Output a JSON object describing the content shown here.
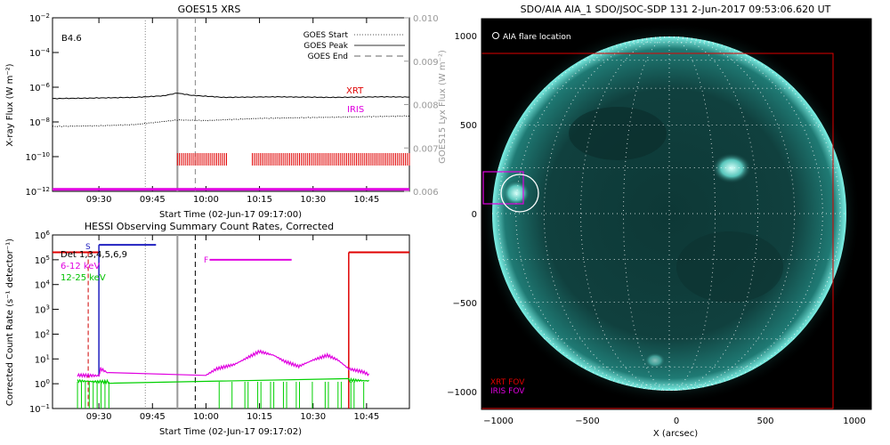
{
  "goes": {
    "title": "GOES15 XRS",
    "class_label": "B4.6",
    "xlabel": "Start Time (02-Jun-17 09:17:00)",
    "ylabel": "X-ray Flux (W m⁻²)",
    "ylabel_right": "GOES15 Lyx Flux (W m⁻²)",
    "legend": {
      "start": "GOES Start",
      "peak": "GOES Peak",
      "end": "GOES End"
    },
    "xrt_label": "XRT",
    "iris_label": "IRIS"
  },
  "hessi": {
    "title": "HESSI Observing Summary Count Rates, Corrected",
    "xlabel": "Start Time (02-Jun-17 09:17:02)",
    "ylabel": "Corrected Count Rate (s⁻¹ detector⁻¹)",
    "legend": {
      "detectors": "Det 1,3,4,5,6,9",
      "low": "6-12 keV",
      "high": "12-25 keV"
    },
    "flag_s": "S",
    "flag_f": "F"
  },
  "aia": {
    "title": "SDO/AIA AIA_1 SDO/JSOC-SDP 131  2-Jun-2017 09:53:06.620 UT",
    "flare_legend": "AIA flare location",
    "xrt_fov": "XRT FOV",
    "iris_fov": "IRIS FOV",
    "xlabel": "X (arcsec)"
  },
  "chart_data": [
    {
      "type": "line",
      "title": "GOES15 XRS",
      "xlabel": "Start Time (02-Jun-17 09:17:00)",
      "ylabel": "X-ray Flux (W m^-2)",
      "ylabel_right": "GOES15 Lyx Flux (W m^-2)",
      "x_ticks": [
        "09:30",
        "09:45",
        "10:00",
        "10:15",
        "10:30",
        "10:45"
      ],
      "x_tick_minutes": [
        570,
        585,
        600,
        615,
        630,
        645
      ],
      "xlim_minutes": [
        557,
        657
      ],
      "y_scale": "log",
      "ylim": [
        1e-12,
        0.01
      ],
      "y_ticks": [
        "10^-12",
        "10^-10",
        "10^-8",
        "10^-6",
        "10^-4",
        "10^-2"
      ],
      "y_right_ticks": [
        "0.006",
        "0.007",
        "0.008",
        "0.009",
        "0.010"
      ],
      "y_right_lim": [
        0.006,
        0.01
      ],
      "series": [
        {
          "color": "#000000",
          "style": "solid",
          "points": [
            [
              557,
              2.2e-07
            ],
            [
              570,
              2.4e-07
            ],
            [
              580,
              2.6e-07
            ],
            [
              588,
              3.2e-07
            ],
            [
              592,
              4.6e-07
            ],
            [
              596,
              3.4e-07
            ],
            [
              605,
              2.6e-07
            ],
            [
              620,
              2.8e-07
            ],
            [
              635,
              2.6e-07
            ],
            [
              650,
              2.8e-07
            ],
            [
              657,
              2.7e-07
            ]
          ]
        },
        {
          "color": "#000000",
          "style": "dotted",
          "points": [
            [
              557,
              5.5e-09
            ],
            [
              570,
              6e-09
            ],
            [
              580,
              7e-09
            ],
            [
              592,
              1.3e-08
            ],
            [
              600,
              1.2e-08
            ],
            [
              615,
              1.6e-08
            ],
            [
              630,
              1.8e-08
            ],
            [
              645,
              2e-08
            ],
            [
              657,
              2.2e-08
            ]
          ]
        }
      ],
      "markers": {
        "goes_start_min": 583,
        "goes_peak_min": 592,
        "goes_end_min": 597
      },
      "xrt_segments_min": [
        [
          592,
          606
        ],
        [
          613,
          657
        ]
      ],
      "iris_level": 1.3e-12
    },
    {
      "type": "line",
      "title": "HESSI Observing Summary Count Rates, Corrected",
      "xlabel": "Start Time (02-Jun-17 09:17:02)",
      "ylabel": "Corrected Count Rate (s^-1 detector^-1)",
      "x_ticks": [
        "09:30",
        "09:45",
        "10:00",
        "10:15",
        "10:30",
        "10:45"
      ],
      "x_tick_minutes": [
        570,
        585,
        600,
        615,
        630,
        645
      ],
      "xlim_minutes": [
        557,
        657
      ],
      "y_scale": "log",
      "ylim": [
        0.1,
        1000000.0
      ],
      "y_ticks": [
        "10^-1",
        "10^0",
        "10^1",
        "10^2",
        "10^3",
        "10^4",
        "10^5",
        "10^6"
      ],
      "series": [
        {
          "name": "6-12 keV",
          "color": "#e000e0",
          "points": [
            [
              564,
              2.2
            ],
            [
              570,
              2.1
            ],
            [
              570.5,
              4
            ],
            [
              573,
              2.5
            ],
            [
              600,
              2.2
            ],
            [
              603,
              4
            ],
            [
              608,
              6
            ],
            [
              612,
              12
            ],
            [
              615,
              20
            ],
            [
              619,
              14
            ],
            [
              622,
              8
            ],
            [
              626,
              5
            ],
            [
              630,
              9
            ],
            [
              634,
              14
            ],
            [
              637,
              9
            ],
            [
              640,
              4
            ],
            [
              644,
              3
            ],
            [
              646,
              2.2
            ]
          ]
        },
        {
          "name": "12-25 keV",
          "color": "#00d000",
          "points": [
            [
              564,
              1.3
            ],
            [
              570,
              1.2
            ],
            [
              573,
              1.2
            ],
            [
              600,
              1.5
            ],
            [
              620,
              1.2
            ],
            [
              640,
              1.4
            ],
            [
              646,
              1.3
            ]
          ]
        }
      ],
      "saa_segments_min": [
        [
          557,
          570
        ],
        [
          570,
          586
        ],
        [
          640,
          657
        ]
      ],
      "flare_flag_min": [
        601,
        624
      ],
      "markers": {
        "dashed_red_min": 567,
        "goes_start_min": 583,
        "goes_peak_min": 592,
        "goes_end_min": 597
      }
    }
  ]
}
